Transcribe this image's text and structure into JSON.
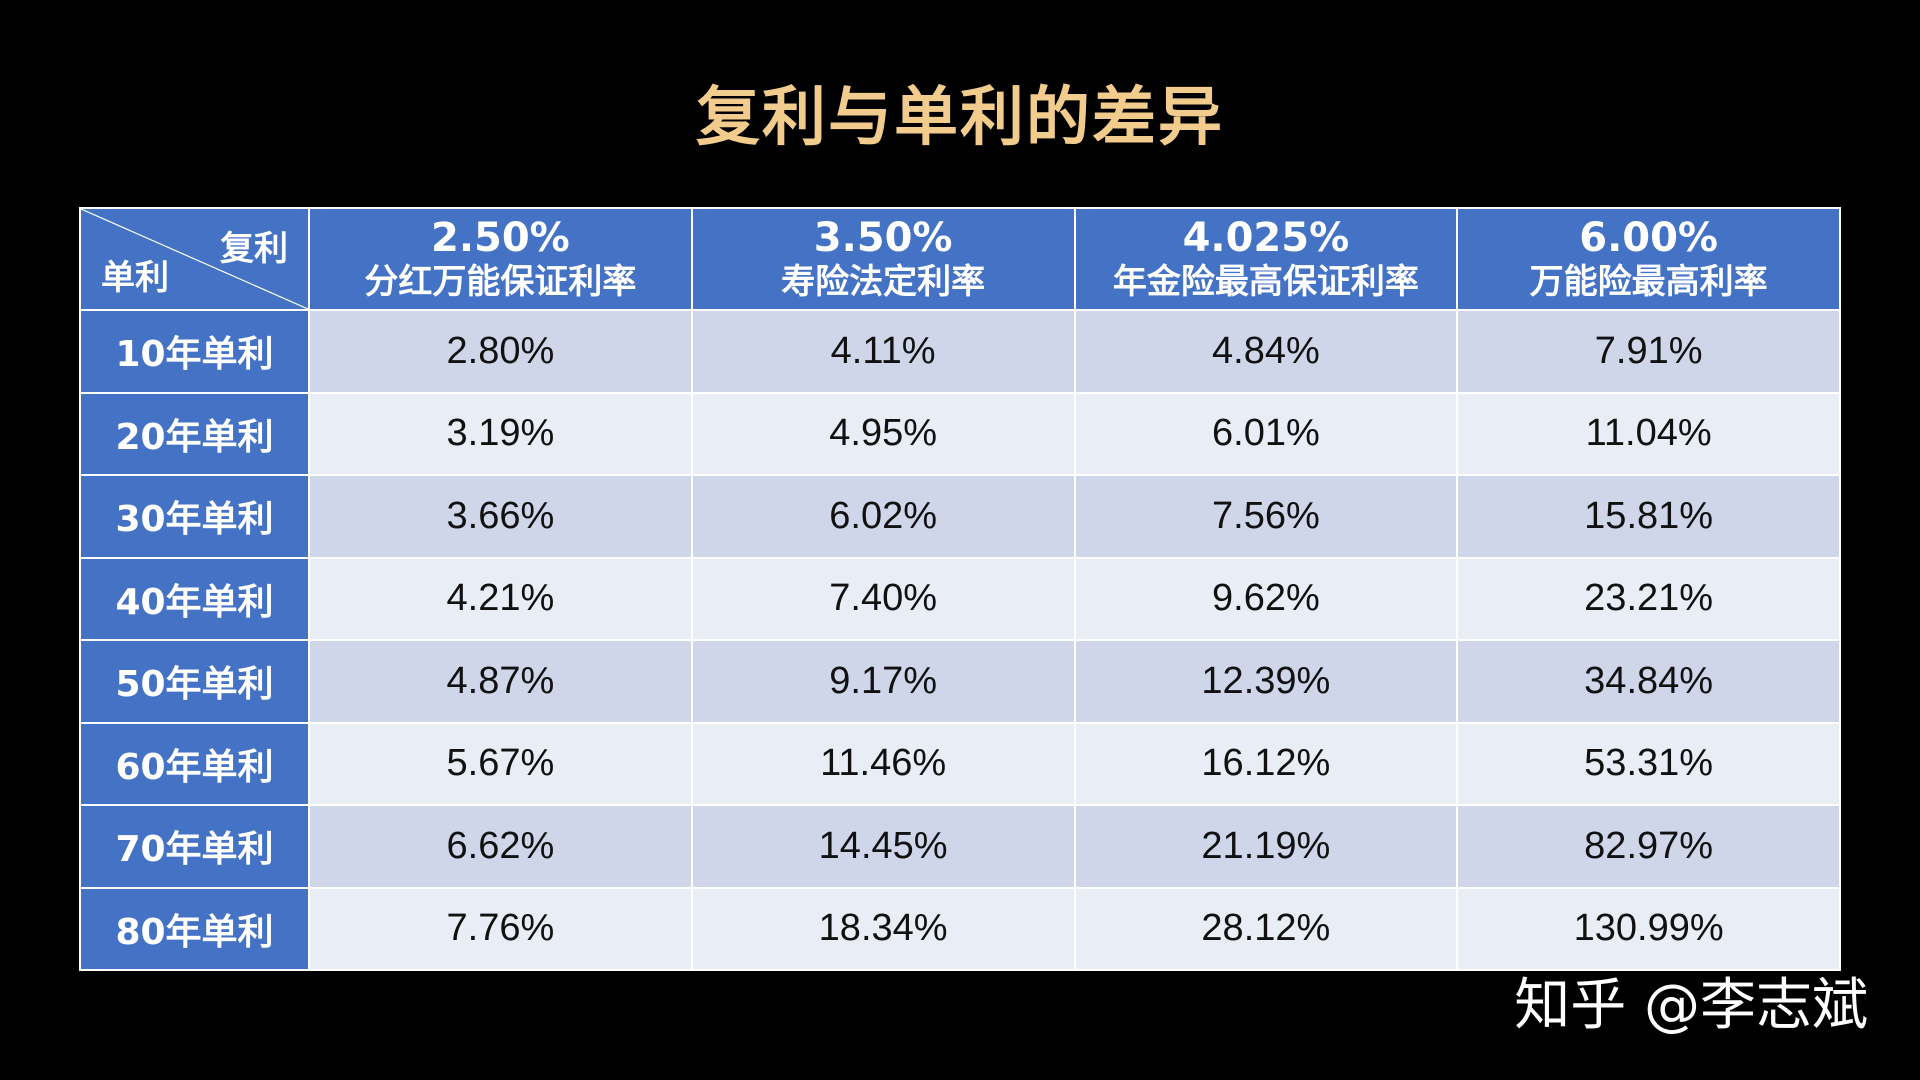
{
  "title": "复利与单利的差异",
  "chart_data": {
    "type": "table",
    "title": "复利与单利的差异",
    "corner": {
      "top": "复利",
      "bottom": "单利"
    },
    "columns": [
      {
        "rate": "2.50%",
        "label": "分红万能保证利率"
      },
      {
        "rate": "3.50%",
        "label": "寿险法定利率"
      },
      {
        "rate": "4.025%",
        "label": "年金险最高保证利率"
      },
      {
        "rate": "6.00%",
        "label": "万能险最高利率"
      }
    ],
    "rows": [
      {
        "label": "10年单利",
        "values": [
          "2.80%",
          "4.11%",
          "4.84%",
          "7.91%"
        ]
      },
      {
        "label": "20年单利",
        "values": [
          "3.19%",
          "4.95%",
          "6.01%",
          "11.04%"
        ]
      },
      {
        "label": "30年单利",
        "values": [
          "3.66%",
          "6.02%",
          "7.56%",
          "15.81%"
        ]
      },
      {
        "label": "40年单利",
        "values": [
          "4.21%",
          "7.40%",
          "9.62%",
          "23.21%"
        ]
      },
      {
        "label": "50年单利",
        "values": [
          "4.87%",
          "9.17%",
          "12.39%",
          "34.84%"
        ]
      },
      {
        "label": "60年单利",
        "values": [
          "5.67%",
          "11.46%",
          "16.12%",
          "53.31%"
        ]
      },
      {
        "label": "70年单利",
        "values": [
          "6.62%",
          "14.45%",
          "21.19%",
          "82.97%"
        ]
      },
      {
        "label": "80年单利",
        "values": [
          "7.76%",
          "18.34%",
          "28.12%",
          "130.99%"
        ]
      }
    ]
  },
  "watermark": "知乎 @李志斌",
  "colors": {
    "title": "#f1cc8c",
    "header_bg": "#4472c4",
    "row_odd": "#cfd6ea",
    "row_even": "#e9edf6"
  }
}
